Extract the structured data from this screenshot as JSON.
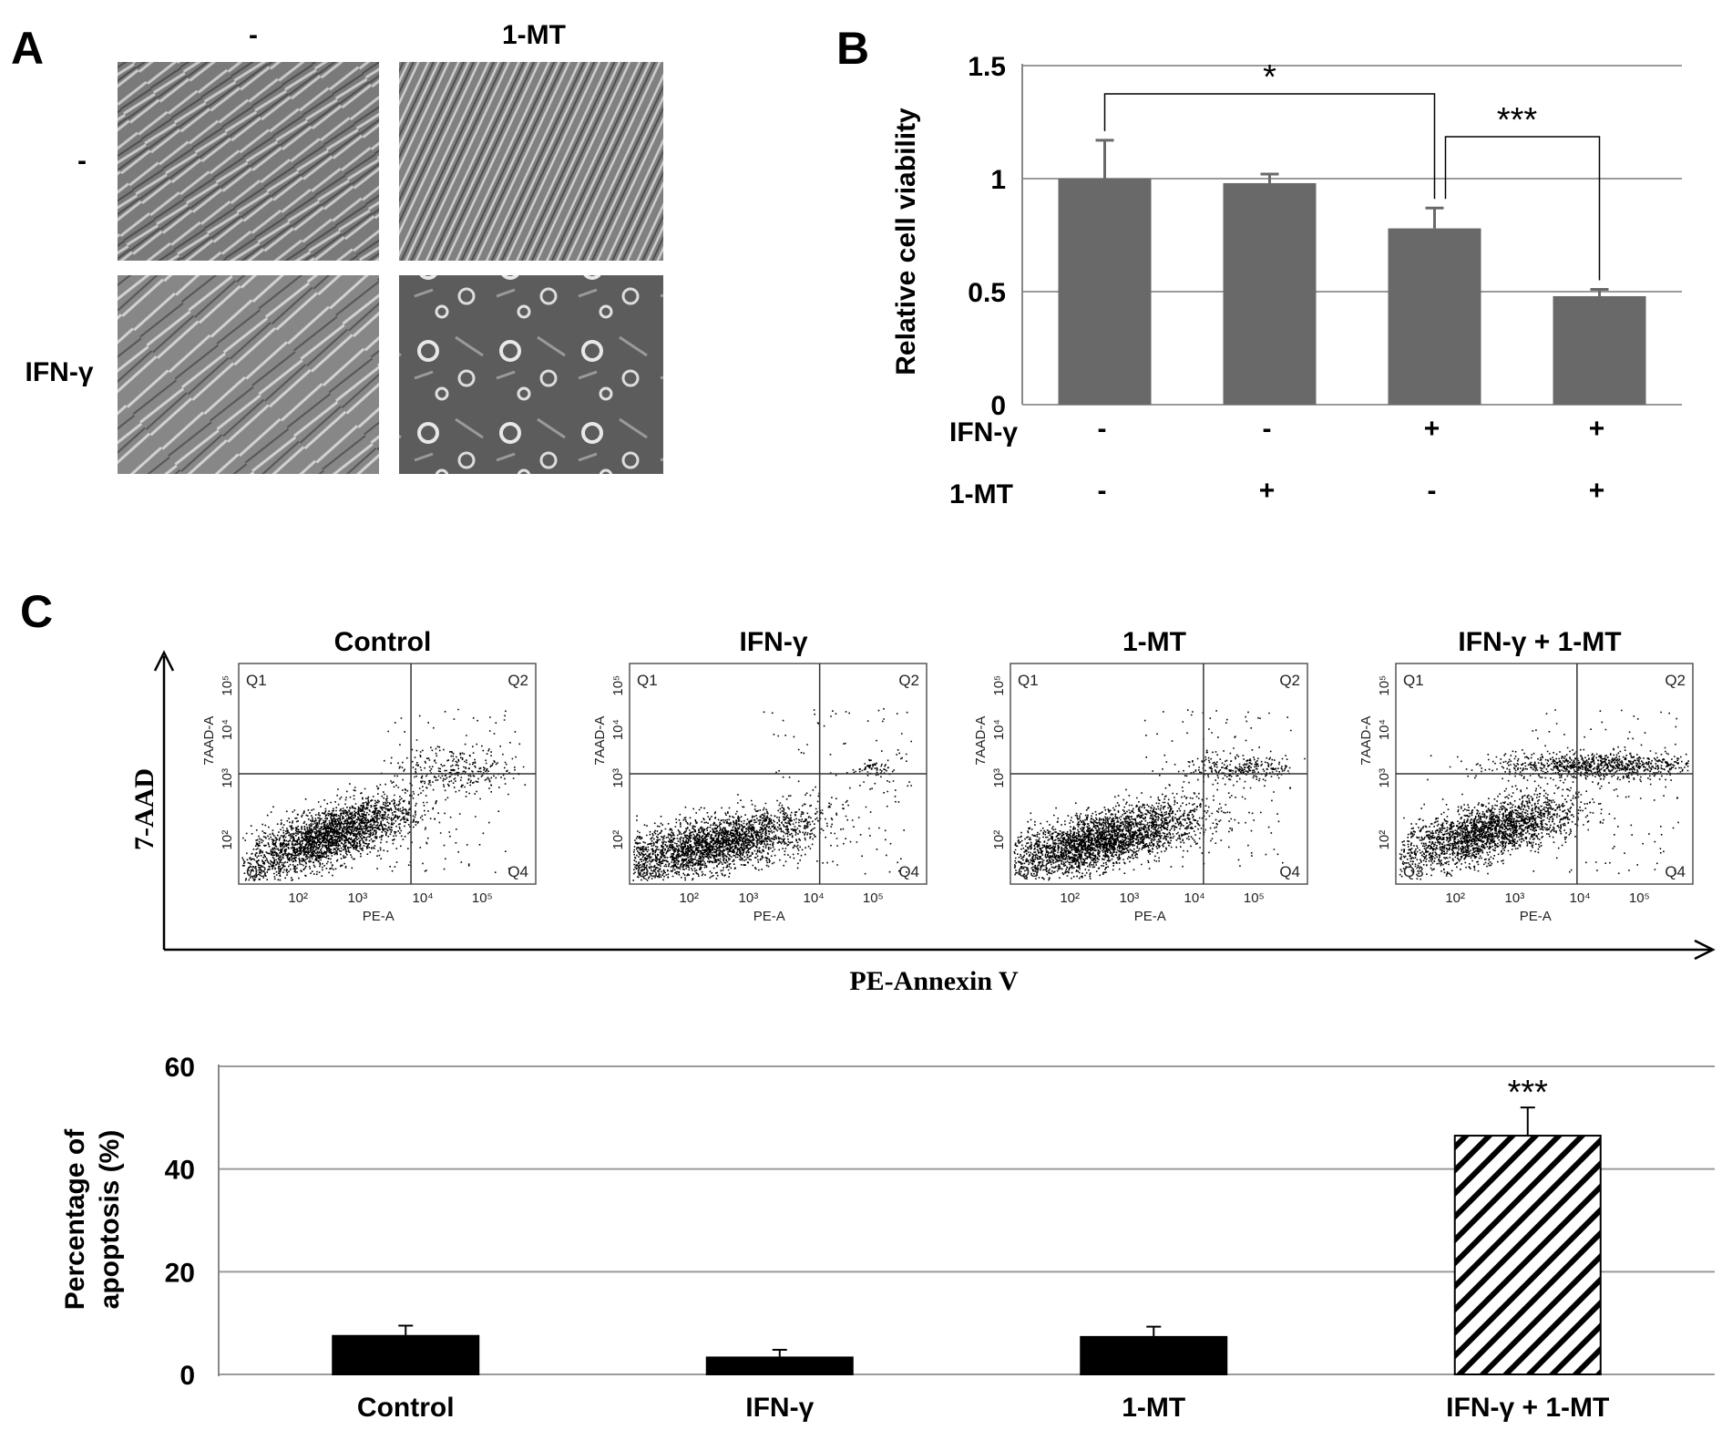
{
  "panels": {
    "a": "A",
    "b": "B",
    "c": "C"
  },
  "panel_a": {
    "col_headers": [
      "-",
      "1-MT"
    ],
    "row_headers": [
      "-",
      "IFN-γ"
    ]
  },
  "chart_data": [
    {
      "id": "panel-b-viability",
      "type": "bar",
      "ylabel": "Relative cell viability",
      "ylim": [
        0,
        1.5
      ],
      "yticks": [
        "0",
        "0.5",
        "1",
        "1.5"
      ],
      "grid": true,
      "bar_color": "#696969",
      "treatments": [
        {
          "name": "IFN-γ",
          "levels": [
            "-",
            "-",
            "+",
            "+"
          ]
        },
        {
          "name": "1-MT",
          "levels": [
            "-",
            "+",
            "-",
            "+"
          ]
        }
      ],
      "values": [
        1.0,
        0.98,
        0.78,
        0.48
      ],
      "errors": [
        0.17,
        0.04,
        0.09,
        0.03
      ],
      "significance": [
        {
          "from": 0,
          "to": 2,
          "label": "*"
        },
        {
          "from": 2,
          "to": 3,
          "label": "***"
        }
      ]
    },
    {
      "id": "panel-c-flow",
      "type": "scatter",
      "xlabel": "PE-Annexin V",
      "ylabel": "7-AAD",
      "plots": [
        {
          "title": "Control"
        },
        {
          "title": "IFN-γ"
        },
        {
          "title": "1-MT"
        },
        {
          "title": "IFN-γ + 1-MT"
        }
      ],
      "inner_xlabel": "PE-A",
      "inner_ylabel": "7AAD-A",
      "quadrants": [
        "Q1",
        "Q2",
        "Q3",
        "Q4"
      ],
      "x_ticks": [
        "10²",
        "10³",
        "10⁴",
        "10⁵"
      ],
      "y_ticks": [
        "10²",
        "10³",
        "10⁴",
        "10⁵"
      ]
    },
    {
      "id": "panel-c-apoptosis",
      "type": "bar",
      "ylabel": "Percentage of apoptosis (%)",
      "ylabel_lines": [
        "Percentage of",
        "apoptosis (%)"
      ],
      "ylim": [
        0,
        60
      ],
      "yticks": [
        "0",
        "20",
        "40",
        "60"
      ],
      "grid": true,
      "categories": [
        "Control",
        "IFN-γ",
        "1-MT",
        "IFN-γ + 1-MT"
      ],
      "values": [
        7.5,
        3.3,
        7.3,
        46.5
      ],
      "errors": [
        2.0,
        1.5,
        2.0,
        5.5
      ],
      "fills": [
        "solid",
        "solid",
        "solid",
        "hatched"
      ],
      "significance": [
        {
          "index": 3,
          "label": "***"
        }
      ]
    }
  ]
}
